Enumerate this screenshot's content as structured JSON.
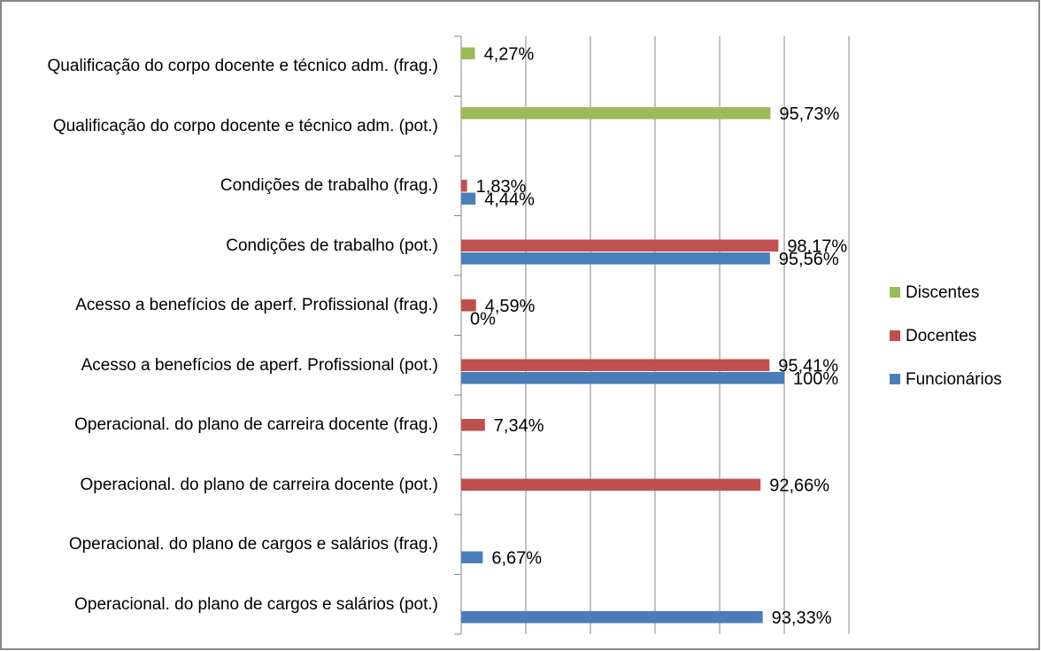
{
  "chart_data": {
    "type": "hbar",
    "categories": [
      "Qualificação do corpo docente e técnico adm. (frag.)",
      "Qualificação do corpo docente e técnico adm. (pot.)",
      "Condições de trabalho (frag.)",
      "Condições de trabalho (pot.)",
      "Acesso a benefícios de aperf. Profissional (frag.)",
      "Acesso a benefícios de aperf. Profissional (pot.)",
      "Operacional. do plano de carreira docente (frag.)",
      "Operacional. do plano de carreira docente (pot.)",
      "Operacional. do plano de cargos e salários (frag.)",
      "Operacional. do plano de cargos e salários (pot.)"
    ],
    "series": [
      {
        "name": "Funcionários",
        "color": "#4a7ebb",
        "values": [
          null,
          null,
          4.44,
          95.56,
          0,
          100,
          null,
          null,
          6.67,
          93.33
        ],
        "value_labels": [
          null,
          null,
          "4,44%",
          "95,56%",
          "0%",
          "100%",
          null,
          null,
          "6,67%",
          "93,33%"
        ]
      },
      {
        "name": "Docentes",
        "color": "#c0504d",
        "values": [
          null,
          null,
          1.83,
          98.17,
          4.59,
          95.41,
          7.34,
          92.66,
          null,
          null
        ],
        "value_labels": [
          null,
          null,
          "1,83%",
          "98,17%",
          "4,59%",
          "95,41%",
          "7,34%",
          "92,66%",
          null,
          null
        ]
      },
      {
        "name": "Discentes",
        "color": "#9bbb59",
        "values": [
          4.27,
          95.73,
          null,
          null,
          null,
          null,
          null,
          null,
          null,
          null
        ],
        "value_labels": [
          "4,27%",
          "95,73%",
          null,
          null,
          null,
          null,
          null,
          null,
          null,
          null
        ]
      }
    ],
    "xlim": [
      0,
      120
    ],
    "xticks": [
      0,
      20,
      40,
      60,
      80,
      100,
      120
    ],
    "grid": true,
    "legend": "right"
  }
}
